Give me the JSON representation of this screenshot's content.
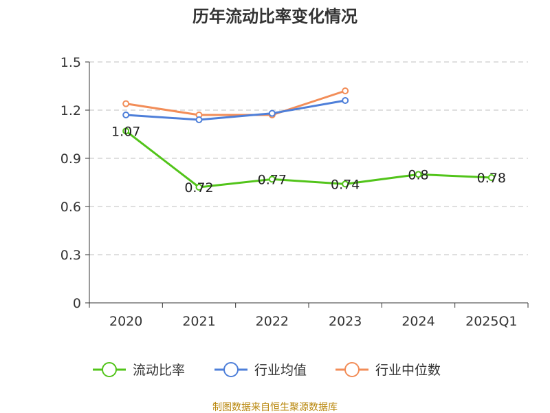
{
  "chart_data": {
    "type": "line",
    "title": "历年流动比率变化情况",
    "categories": [
      "2020",
      "2021",
      "2022",
      "2023",
      "2024",
      "2025Q1"
    ],
    "ylim": [
      0,
      1.5
    ],
    "yticks": [
      "0",
      "0.3",
      "0.6",
      "0.9",
      "1.2",
      "1.5"
    ],
    "grid": true,
    "legend_position": "bottom",
    "series": [
      {
        "name": "流动比率",
        "color": "#52c41a",
        "values": [
          1.07,
          0.72,
          0.77,
          0.74,
          0.8,
          0.78
        ],
        "labels": [
          "1.07",
          "0.72",
          "0.77",
          "0.74",
          "0.8",
          "0.78"
        ]
      },
      {
        "name": "行业均值",
        "color": "#4e7fd9",
        "values": [
          1.17,
          1.14,
          1.18,
          1.26,
          null,
          null
        ]
      },
      {
        "name": "行业中位数",
        "color": "#f28d58",
        "values": [
          1.24,
          1.17,
          1.17,
          1.32,
          null,
          null
        ]
      }
    ]
  },
  "source": "制图数据来自恒生聚源数据库"
}
